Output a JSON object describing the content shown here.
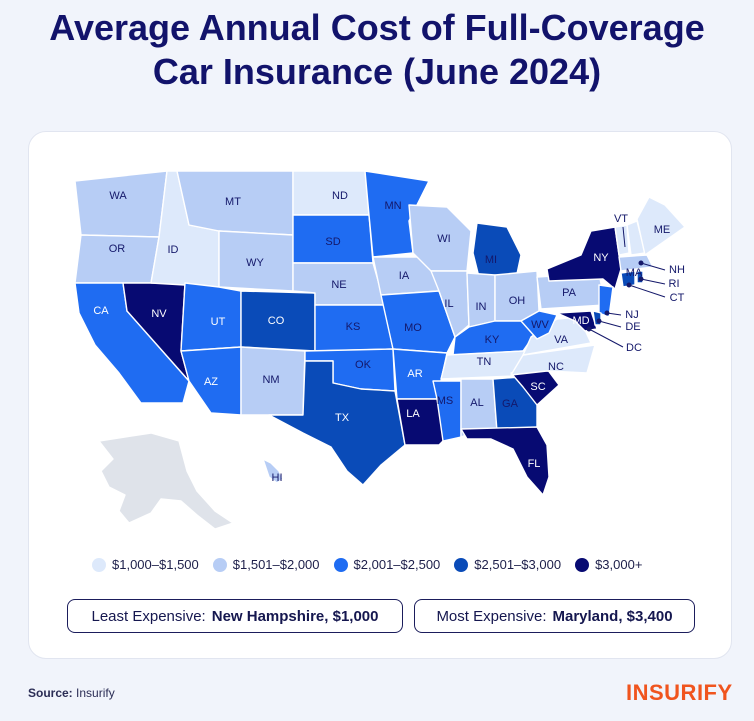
{
  "title_line1": "Average Annual Cost of Full-Coverage",
  "title_line2": "Car Insurance (June 2024)",
  "colors": {
    "tier1": "#dde9fb",
    "tier2": "#b7cdf5",
    "tier3": "#1f6cf2",
    "tier4": "#0a4bb8",
    "tier5": "#070a72",
    "brand": "#f0541e"
  },
  "legend": [
    {
      "label": "$1,000–$1,500"
    },
    {
      "label": "$1,501–$2,000"
    },
    {
      "label": "$2,001–$2,500"
    },
    {
      "label": "$2,501–$3,000"
    },
    {
      "label": "$3,000+"
    }
  ],
  "states": {
    "WA": "WA",
    "OR": "OR",
    "CA": "CA",
    "NV": "NV",
    "ID": "ID",
    "MT": "MT",
    "WY": "WY",
    "UT": "UT",
    "AZ": "AZ",
    "CO": "CO",
    "NM": "NM",
    "ND": "ND",
    "SD": "SD",
    "NE": "NE",
    "KS": "KS",
    "OK": "OK",
    "TX": "TX",
    "MN": "MN",
    "IA": "IA",
    "MO": "MO",
    "AR": "AR",
    "LA": "LA",
    "WI": "WI",
    "IL": "IL",
    "MI": "MI",
    "IN": "IN",
    "OH": "OH",
    "KY": "KY",
    "TN": "TN",
    "MS": "MS",
    "AL": "AL",
    "GA": "GA",
    "FL": "FL",
    "SC": "SC",
    "NC": "NC",
    "VA": "VA",
    "WV": "WV",
    "PA": "PA",
    "NY": "NY",
    "VT": "VT",
    "ME": "ME",
    "NH": "NH",
    "MA": "MA",
    "RI": "RI",
    "CT": "CT",
    "NJ": "NJ",
    "DE": "DE",
    "MD": "MD",
    "DC": "DC",
    "HI": "HI"
  },
  "least_expensive": {
    "label": "Least Expensive:",
    "value": "New Hampshire, $1,000"
  },
  "most_expensive": {
    "label": "Most Expensive:",
    "value": "Maryland, $3,400"
  },
  "source": {
    "label": "Source:",
    "value": "Insurify"
  },
  "logo": "INSURIFY"
}
